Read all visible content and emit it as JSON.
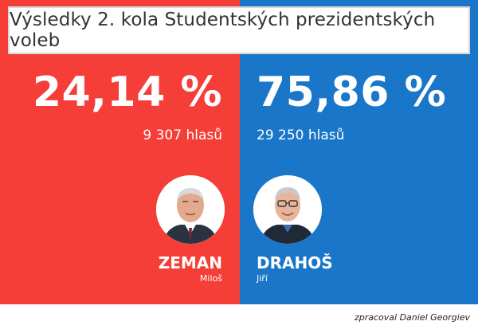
{
  "title": "Výsledky 2. kola Studentských prezidentských voleb",
  "candidates": [
    {
      "surname": "ZEMAN",
      "first_name": "Miloš",
      "percent": "24,14 %",
      "votes": "9 307 hlasů",
      "color": "#f43e37",
      "photo_icon": "portrait-zeman-icon"
    },
    {
      "surname": "DRAHOŠ",
      "first_name": "Jiří",
      "percent": "75,86 %",
      "votes": "29 250 hlasů",
      "color": "#1976c8",
      "photo_icon": "portrait-drahos-icon"
    }
  ],
  "credit": "zpracoval Daniel Georgiev"
}
